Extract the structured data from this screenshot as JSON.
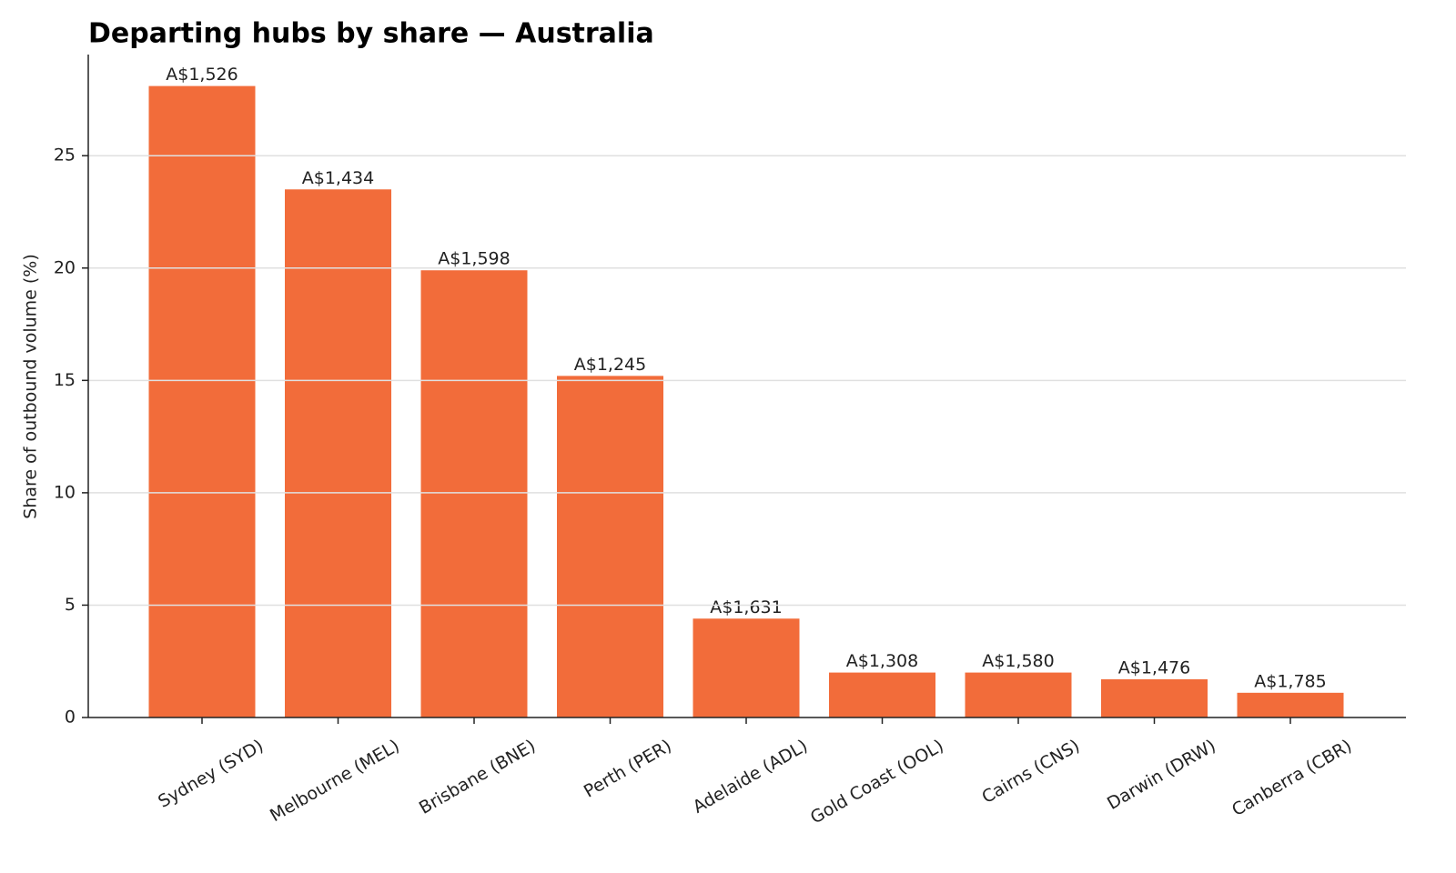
{
  "chart_data": {
    "type": "bar",
    "title": "Departing hubs by share — Australia",
    "y_label": "Share of outbound volume (%)",
    "categories": [
      "Sydney (SYD)",
      "Melbourne (MEL)",
      "Brisbane (BNE)",
      "Perth (PER)",
      "Adelaide (ADL)",
      "Gold Coast (OOL)",
      "Cairns (CNS)",
      "Darwin (DRW)",
      "Canberra (CBR)"
    ],
    "values": [
      28.1,
      23.5,
      19.9,
      15.2,
      4.4,
      2.0,
      2.0,
      1.7,
      1.1
    ],
    "fare_labels": [
      "A$1,526",
      "A$1,434",
      "A$1,598",
      "A$1,245",
      "A$1,631",
      "A$1,308",
      "A$1,580",
      "A$1,476",
      "A$1,785"
    ],
    "color": "#f26c3a",
    "ylim": [
      0,
      29.5
    ],
    "yticks": [
      0,
      5,
      10,
      15,
      20,
      25
    ],
    "grid": true
  }
}
